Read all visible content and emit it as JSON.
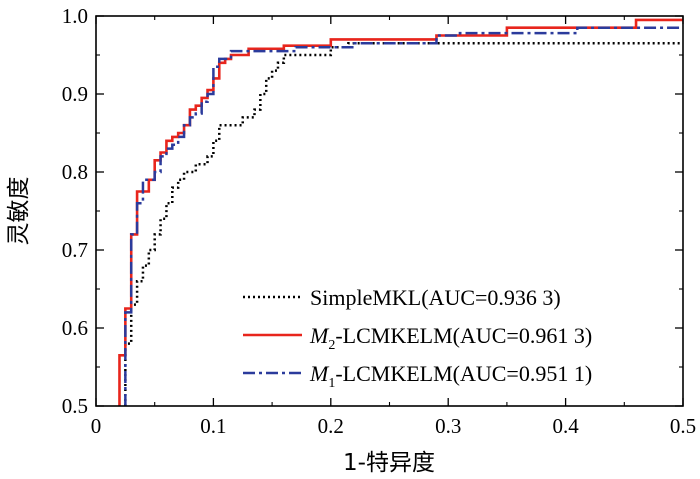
{
  "chart_data": {
    "type": "line",
    "xlabel": "1-特异度",
    "ylabel": "灵敏度",
    "xlim": [
      0,
      0.5
    ],
    "ylim": [
      0.5,
      1.0
    ],
    "xticks": [
      0,
      0.1,
      0.2,
      0.3,
      0.4,
      0.5
    ],
    "xtick_labels": [
      "0",
      "0.1",
      "0.2",
      "0.3",
      "0.4",
      "0.5"
    ],
    "yticks": [
      0.5,
      0.6,
      0.7,
      0.8,
      0.9,
      1.0
    ],
    "ytick_labels": [
      "0.5",
      "0.6",
      "0.7",
      "0.8",
      "0.9",
      "1.0"
    ],
    "legend_position": "bottom-right",
    "series": [
      {
        "name": "SimpleMKL(AUC=0.936 3)",
        "name_prefix": "SimpleMKL(AUC=0.936 3)",
        "name_italic": "",
        "name_sub": "",
        "color": "#000000",
        "style": "dotted",
        "points": [
          [
            0.025,
            0.5
          ],
          [
            0.025,
            0.58
          ],
          [
            0.03,
            0.58
          ],
          [
            0.03,
            0.63
          ],
          [
            0.035,
            0.63
          ],
          [
            0.035,
            0.66
          ],
          [
            0.04,
            0.66
          ],
          [
            0.04,
            0.68
          ],
          [
            0.045,
            0.68
          ],
          [
            0.045,
            0.7
          ],
          [
            0.05,
            0.7
          ],
          [
            0.05,
            0.72
          ],
          [
            0.055,
            0.72
          ],
          [
            0.055,
            0.74
          ],
          [
            0.06,
            0.74
          ],
          [
            0.06,
            0.76
          ],
          [
            0.065,
            0.76
          ],
          [
            0.065,
            0.78
          ],
          [
            0.07,
            0.78
          ],
          [
            0.07,
            0.79
          ],
          [
            0.075,
            0.79
          ],
          [
            0.075,
            0.8
          ],
          [
            0.085,
            0.8
          ],
          [
            0.085,
            0.81
          ],
          [
            0.095,
            0.81
          ],
          [
            0.095,
            0.82
          ],
          [
            0.1,
            0.82
          ],
          [
            0.1,
            0.84
          ],
          [
            0.105,
            0.84
          ],
          [
            0.105,
            0.86
          ],
          [
            0.125,
            0.86
          ],
          [
            0.125,
            0.87
          ],
          [
            0.135,
            0.87
          ],
          [
            0.135,
            0.88
          ],
          [
            0.14,
            0.88
          ],
          [
            0.14,
            0.9
          ],
          [
            0.145,
            0.9
          ],
          [
            0.145,
            0.92
          ],
          [
            0.15,
            0.92
          ],
          [
            0.15,
            0.93
          ],
          [
            0.155,
            0.93
          ],
          [
            0.155,
            0.94
          ],
          [
            0.16,
            0.94
          ],
          [
            0.16,
            0.95
          ],
          [
            0.2,
            0.95
          ],
          [
            0.2,
            0.96
          ],
          [
            0.215,
            0.96
          ],
          [
            0.215,
            0.965
          ],
          [
            0.5,
            0.965
          ]
        ]
      },
      {
        "name": "M2-LCMKELM(AUC=0.961 3)",
        "name_prefix": "",
        "name_italic": "M",
        "name_sub": "2",
        "name_rest": "-LCMKELM(AUC=0.961 3)",
        "color": "#e8251c",
        "style": "solid",
        "points": [
          [
            0.02,
            0.5
          ],
          [
            0.02,
            0.565
          ],
          [
            0.025,
            0.565
          ],
          [
            0.025,
            0.625
          ],
          [
            0.03,
            0.625
          ],
          [
            0.03,
            0.72
          ],
          [
            0.035,
            0.72
          ],
          [
            0.035,
            0.775
          ],
          [
            0.045,
            0.775
          ],
          [
            0.045,
            0.79
          ],
          [
            0.05,
            0.79
          ],
          [
            0.05,
            0.815
          ],
          [
            0.055,
            0.815
          ],
          [
            0.055,
            0.825
          ],
          [
            0.06,
            0.825
          ],
          [
            0.06,
            0.84
          ],
          [
            0.065,
            0.84
          ],
          [
            0.065,
            0.845
          ],
          [
            0.07,
            0.845
          ],
          [
            0.07,
            0.85
          ],
          [
            0.075,
            0.85
          ],
          [
            0.075,
            0.86
          ],
          [
            0.08,
            0.86
          ],
          [
            0.08,
            0.88
          ],
          [
            0.085,
            0.88
          ],
          [
            0.085,
            0.885
          ],
          [
            0.09,
            0.885
          ],
          [
            0.09,
            0.895
          ],
          [
            0.095,
            0.895
          ],
          [
            0.095,
            0.905
          ],
          [
            0.1,
            0.905
          ],
          [
            0.1,
            0.92
          ],
          [
            0.105,
            0.92
          ],
          [
            0.105,
            0.94
          ],
          [
            0.11,
            0.94
          ],
          [
            0.11,
            0.945
          ],
          [
            0.115,
            0.945
          ],
          [
            0.115,
            0.95
          ],
          [
            0.13,
            0.95
          ],
          [
            0.13,
            0.958
          ],
          [
            0.16,
            0.958
          ],
          [
            0.16,
            0.962
          ],
          [
            0.2,
            0.962
          ],
          [
            0.2,
            0.97
          ],
          [
            0.29,
            0.97
          ],
          [
            0.29,
            0.975
          ],
          [
            0.35,
            0.975
          ],
          [
            0.35,
            0.985
          ],
          [
            0.46,
            0.985
          ],
          [
            0.46,
            0.995
          ],
          [
            0.5,
            0.995
          ]
        ]
      },
      {
        "name": "M1-LCMKELM(AUC=0.951 1)",
        "name_prefix": "",
        "name_italic": "M",
        "name_sub": "1",
        "name_rest": "-LCMKELM(AUC=0.951 1)",
        "color": "#2b3b9c",
        "style": "dashdot",
        "points": [
          [
            0.025,
            0.5
          ],
          [
            0.025,
            0.62
          ],
          [
            0.03,
            0.62
          ],
          [
            0.03,
            0.72
          ],
          [
            0.035,
            0.72
          ],
          [
            0.035,
            0.76
          ],
          [
            0.04,
            0.76
          ],
          [
            0.04,
            0.79
          ],
          [
            0.05,
            0.79
          ],
          [
            0.05,
            0.8
          ],
          [
            0.055,
            0.8
          ],
          [
            0.055,
            0.82
          ],
          [
            0.06,
            0.82
          ],
          [
            0.06,
            0.83
          ],
          [
            0.065,
            0.83
          ],
          [
            0.065,
            0.835
          ],
          [
            0.07,
            0.835
          ],
          [
            0.07,
            0.845
          ],
          [
            0.075,
            0.845
          ],
          [
            0.075,
            0.86
          ],
          [
            0.08,
            0.86
          ],
          [
            0.08,
            0.87
          ],
          [
            0.085,
            0.87
          ],
          [
            0.085,
            0.875
          ],
          [
            0.09,
            0.875
          ],
          [
            0.09,
            0.89
          ],
          [
            0.095,
            0.89
          ],
          [
            0.095,
            0.9
          ],
          [
            0.1,
            0.9
          ],
          [
            0.1,
            0.935
          ],
          [
            0.105,
            0.935
          ],
          [
            0.105,
            0.945
          ],
          [
            0.115,
            0.945
          ],
          [
            0.115,
            0.955
          ],
          [
            0.17,
            0.955
          ],
          [
            0.17,
            0.96
          ],
          [
            0.22,
            0.96
          ],
          [
            0.22,
            0.965
          ],
          [
            0.29,
            0.965
          ],
          [
            0.29,
            0.975
          ],
          [
            0.31,
            0.975
          ],
          [
            0.31,
            0.978
          ],
          [
            0.41,
            0.978
          ],
          [
            0.41,
            0.985
          ],
          [
            0.5,
            0.985
          ]
        ]
      }
    ]
  }
}
